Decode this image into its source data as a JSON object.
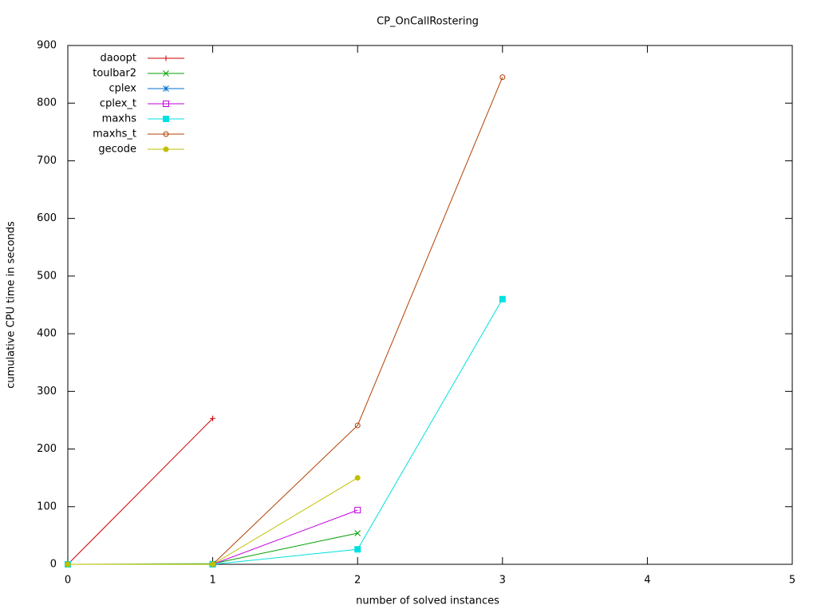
{
  "chart_data": {
    "type": "line",
    "title": "CP_OnCallRostering",
    "xlabel": "number of solved instances",
    "ylabel": "cumulative CPU time in seconds",
    "xlim": [
      0,
      5
    ],
    "xticks": [
      0,
      1,
      2,
      3,
      4,
      5
    ],
    "ylim": [
      0,
      900
    ],
    "yticks": [
      0,
      100,
      200,
      300,
      400,
      500,
      600,
      700,
      800,
      900
    ],
    "legend": "top-left",
    "series": [
      {
        "name": "daoopt",
        "color": "#cc0000",
        "marker": "plus",
        "x": [
          0,
          1
        ],
        "values": [
          0,
          253
        ]
      },
      {
        "name": "toulbar2",
        "color": "#00a000",
        "marker": "cross",
        "x": [
          0,
          1,
          2
        ],
        "values": [
          0,
          1,
          54
        ]
      },
      {
        "name": "cplex",
        "color": "#0070d0",
        "marker": "star",
        "x": [
          0,
          1
        ],
        "values": [
          0,
          0
        ]
      },
      {
        "name": "cplex_t",
        "color": "#c000e0",
        "marker": "open-square",
        "x": [
          0,
          1,
          2
        ],
        "values": [
          0,
          0,
          94
        ]
      },
      {
        "name": "maxhs",
        "color": "#00e0e0",
        "marker": "filled-square",
        "x": [
          0,
          1,
          2,
          3
        ],
        "values": [
          0,
          0,
          26,
          460
        ]
      },
      {
        "name": "maxhs_t",
        "color": "#b04000",
        "marker": "open-circle",
        "x": [
          0,
          1,
          2,
          3
        ],
        "values": [
          0,
          0,
          241,
          845
        ]
      },
      {
        "name": "gecode",
        "color": "#c0c000",
        "marker": "filled-circle",
        "x": [
          0,
          1,
          2
        ],
        "values": [
          0,
          0,
          150
        ]
      }
    ]
  }
}
